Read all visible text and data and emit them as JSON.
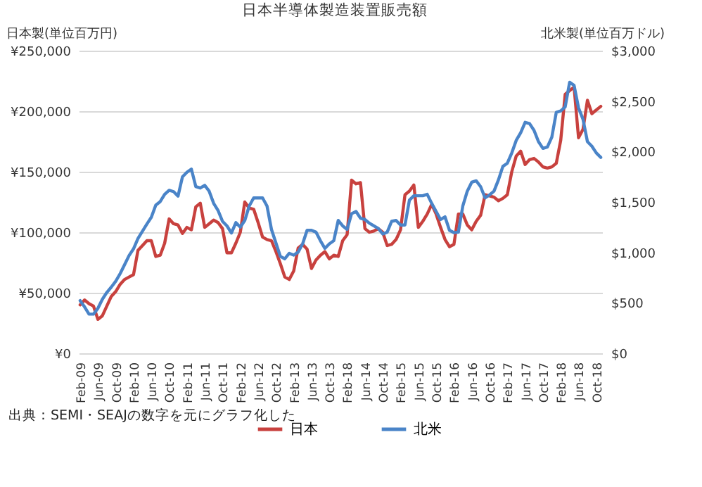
{
  "chart_data": {
    "type": "line",
    "title": "日本半導体製造装置販売額",
    "ylabel": "日本製(単位百万円)",
    "y2label": "北米製(単位百万ドル)",
    "categories": [
      "Feb-09",
      null,
      null,
      null,
      "Jun-09",
      null,
      null,
      null,
      "Oct-09",
      null,
      null,
      null,
      "Feb-10",
      null,
      null,
      null,
      "Jun-10",
      null,
      null,
      null,
      "Oct-10",
      null,
      null,
      null,
      "Feb-11",
      null,
      null,
      null,
      "Jun-11",
      null,
      null,
      null,
      "Oct-11",
      null,
      null,
      null,
      "Feb-12",
      null,
      null,
      null,
      "Jun-12",
      null,
      null,
      null,
      "Oct-12",
      null,
      null,
      null,
      "Feb-13",
      null,
      null,
      null,
      "Jun-13",
      null,
      null,
      null,
      "Oct-13",
      null,
      null,
      null,
      "Feb-18",
      null,
      null,
      null,
      "Jun-14",
      null,
      null,
      null,
      "Oct-14",
      null,
      null,
      null,
      "Feb-15",
      null,
      null,
      null,
      "Jun-15",
      null,
      null,
      null,
      "Oct-15",
      null,
      null,
      null,
      "Feb-16",
      null,
      null,
      null,
      "Jun-16",
      null,
      null,
      null,
      "Oct-16",
      null,
      null,
      null,
      "Feb-17",
      null,
      null,
      null,
      "Jun-17",
      null,
      null,
      null,
      "Oct-17",
      null,
      null,
      null,
      "Feb-18",
      null,
      null,
      null,
      "Jun-18",
      null,
      null,
      null,
      "Oct-18",
      null
    ],
    "series": [
      {
        "name": "日本",
        "color": "#c8413e",
        "values": [
          40000,
          44000,
          41000,
          39000,
          28000,
          31000,
          39000,
          47000,
          51000,
          57000,
          61000,
          63000,
          65000,
          85000,
          89000,
          93000,
          93000,
          80000,
          81000,
          91000,
          111000,
          107000,
          106000,
          99000,
          104000,
          102000,
          121000,
          124000,
          104000,
          107000,
          110000,
          108000,
          103000,
          83000,
          83000,
          91000,
          100000,
          125000,
          120000,
          119000,
          108000,
          96000,
          94000,
          93000,
          84000,
          74000,
          63000,
          61000,
          68000,
          87000,
          90000,
          86000,
          70000,
          77000,
          81000,
          84000,
          78000,
          81000,
          80000,
          93000,
          98000,
          143000,
          140000,
          141000,
          103000,
          100000,
          101000,
          103000,
          100000,
          89000,
          90000,
          94000,
          102000,
          131000,
          134000,
          139000,
          104000,
          109000,
          115000,
          123000,
          115000,
          104000,
          94000,
          88000,
          90000,
          115000,
          115000,
          106000,
          102000,
          109000,
          114000,
          131000,
          130000,
          129000,
          126000,
          128000,
          131000,
          150000,
          163000,
          167000,
          156000,
          160000,
          161000,
          158000,
          154000,
          153000,
          154000,
          157000,
          176000,
          214000,
          217000,
          220000,
          178000,
          185000,
          209000,
          198000,
          201000,
          204000
        ]
      },
      {
        "name": "北米",
        "color": "#4a84c8",
        "axis": "y2",
        "values": [
          522,
          460,
          388,
          388,
          446,
          536,
          603,
          656,
          714,
          790,
          879,
          969,
          1036,
          1138,
          1210,
          1281,
          1348,
          1469,
          1504,
          1576,
          1616,
          1603,
          1558,
          1750,
          1795,
          1826,
          1652,
          1638,
          1665,
          1607,
          1487,
          1415,
          1308,
          1263,
          1192,
          1295,
          1250,
          1317,
          1460,
          1540,
          1540,
          1540,
          1460,
          1228,
          1094,
          960,
          937,
          991,
          973,
          1004,
          1085,
          1219,
          1219,
          1201,
          1116,
          1040,
          1085,
          1116,
          1317,
          1263,
          1228,
          1384,
          1406,
          1339,
          1326,
          1290,
          1263,
          1237,
          1183,
          1201,
          1308,
          1317,
          1272,
          1272,
          1518,
          1562,
          1562,
          1562,
          1576,
          1487,
          1406,
          1326,
          1353,
          1219,
          1196,
          1201,
          1460,
          1607,
          1696,
          1710,
          1652,
          1540,
          1570,
          1607,
          1719,
          1853,
          1884,
          1986,
          2111,
          2187,
          2290,
          2277,
          2210,
          2098,
          2031,
          2045,
          2143,
          2388,
          2402,
          2442,
          2687,
          2656,
          2433,
          2321,
          2098,
          2053,
          1986,
          1942
        ]
      }
    ],
    "ylim": [
      0,
      250000
    ],
    "yticks": [
      {
        "value": 0,
        "label": "¥0"
      },
      {
        "value": 50000,
        "label": "¥50,000"
      },
      {
        "value": 100000,
        "label": "¥100,000"
      },
      {
        "value": 150000,
        "label": "¥150,000"
      },
      {
        "value": 200000,
        "label": "¥200,000"
      },
      {
        "value": 250000,
        "label": "¥250,000"
      }
    ],
    "y2lim": [
      0,
      3000
    ],
    "y2ticks": [
      {
        "value": 0,
        "label": "$0"
      },
      {
        "value": 500,
        "label": "$500"
      },
      {
        "value": 1000,
        "label": "$1,000"
      },
      {
        "value": 1500,
        "label": "$1,500"
      },
      {
        "value": 2000,
        "label": "$2,000"
      },
      {
        "value": 2500,
        "label": "$2,500"
      },
      {
        "value": 3000,
        "label": "$3,000"
      }
    ],
    "grid": "y",
    "legend": "bottom",
    "annotations": [
      "出典：SEMI・SEAJの数字を元にグラフ化した"
    ]
  }
}
